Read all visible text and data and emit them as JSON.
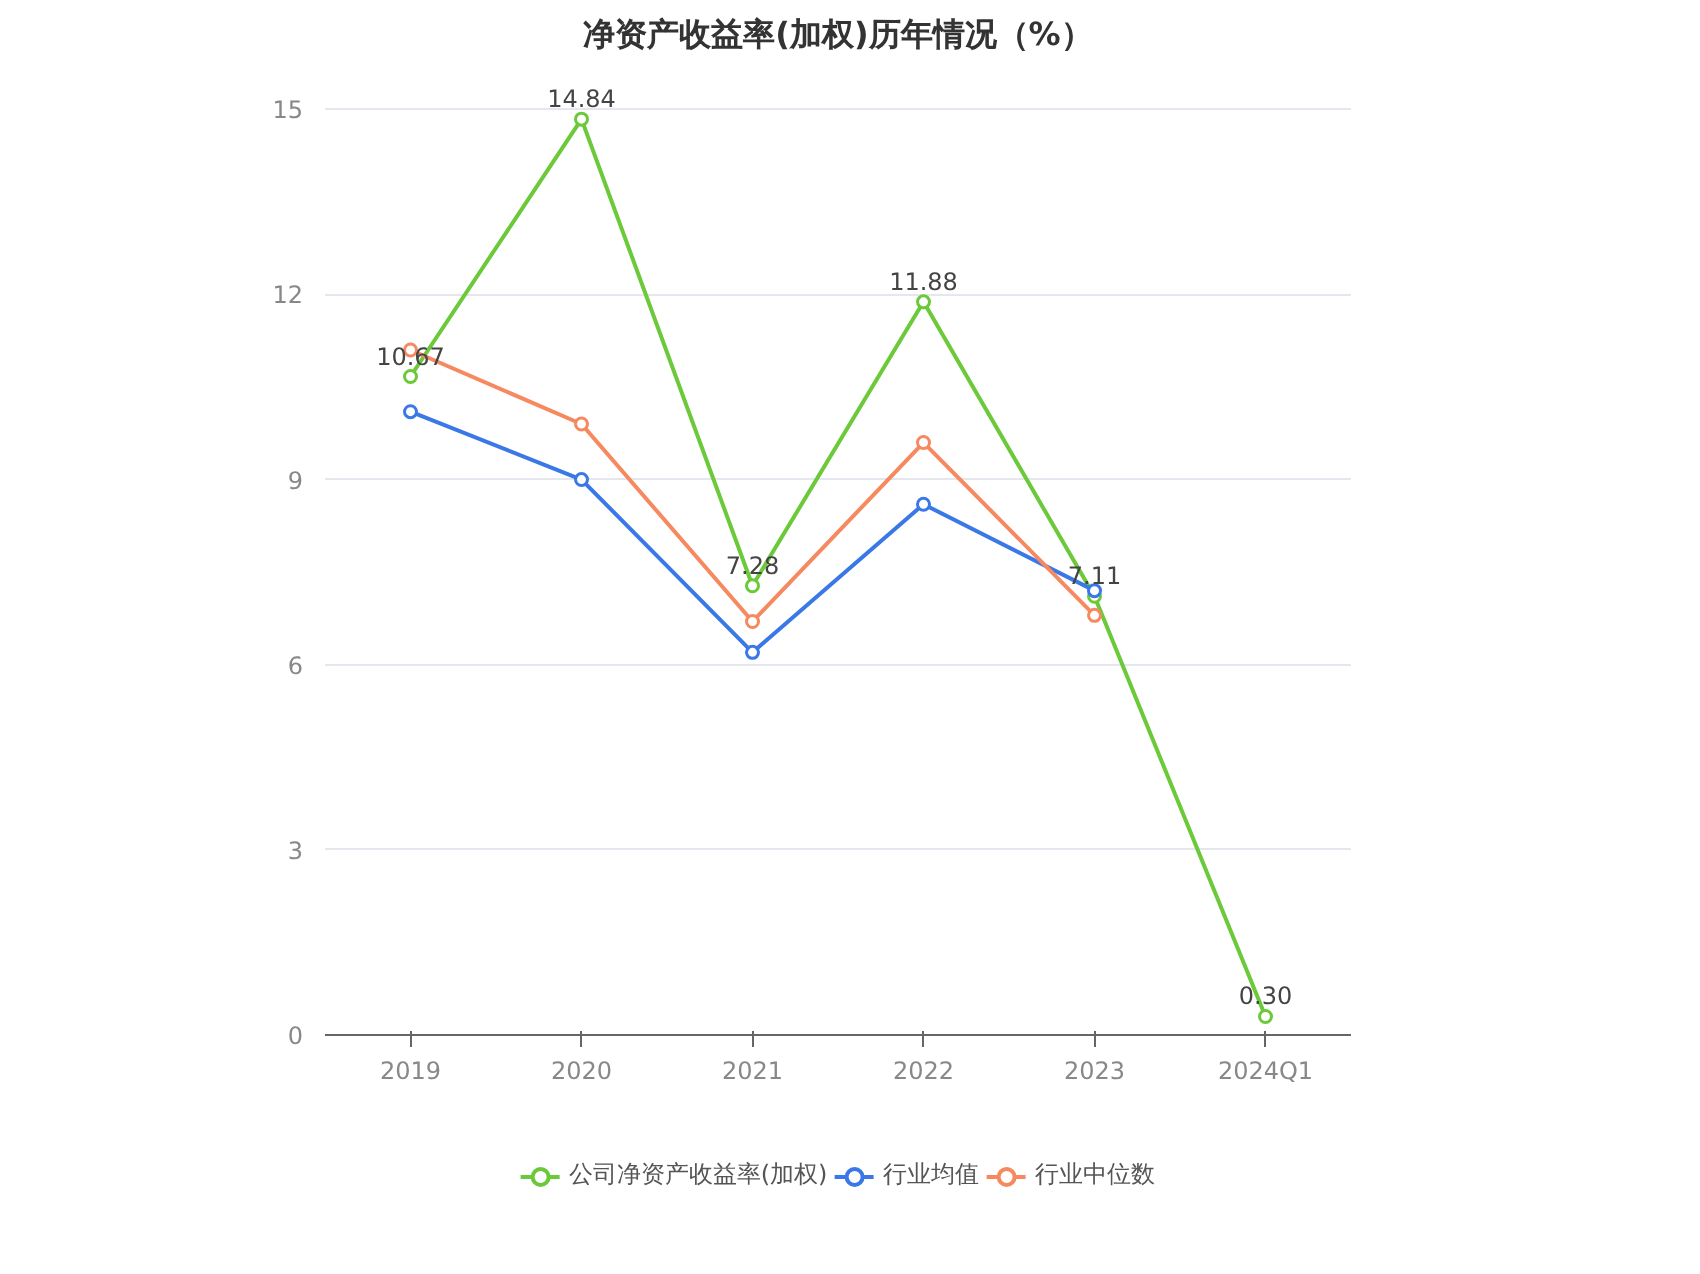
{
  "chart_data": {
    "type": "line",
    "title": "净资产收益率(加权)历年情况（%）",
    "categories": [
      "2019",
      "2020",
      "2021",
      "2022",
      "2023",
      "2024Q1"
    ],
    "series": [
      {
        "name": "公司净资产收益率(加权)",
        "color": "#6cc93a",
        "values": [
          10.67,
          14.84,
          7.28,
          11.88,
          7.11,
          0.3
        ],
        "value_labels": [
          "10.67",
          "14.84",
          "7.28",
          "11.88",
          "7.11",
          "0.30"
        ]
      },
      {
        "name": "行业均值",
        "color": "#3b78e7",
        "values": [
          10.1,
          9.0,
          6.2,
          8.6,
          7.2,
          null
        ]
      },
      {
        "name": "行业中位数",
        "color": "#f6895f",
        "values": [
          11.1,
          9.9,
          6.7,
          9.6,
          6.8,
          null
        ]
      }
    ],
    "ylim": [
      0,
      15
    ],
    "yticks": [
      0,
      3,
      6,
      9,
      12,
      15
    ],
    "grid": "y",
    "legend": "bottom",
    "marker": "circle",
    "line_style": "solid"
  }
}
